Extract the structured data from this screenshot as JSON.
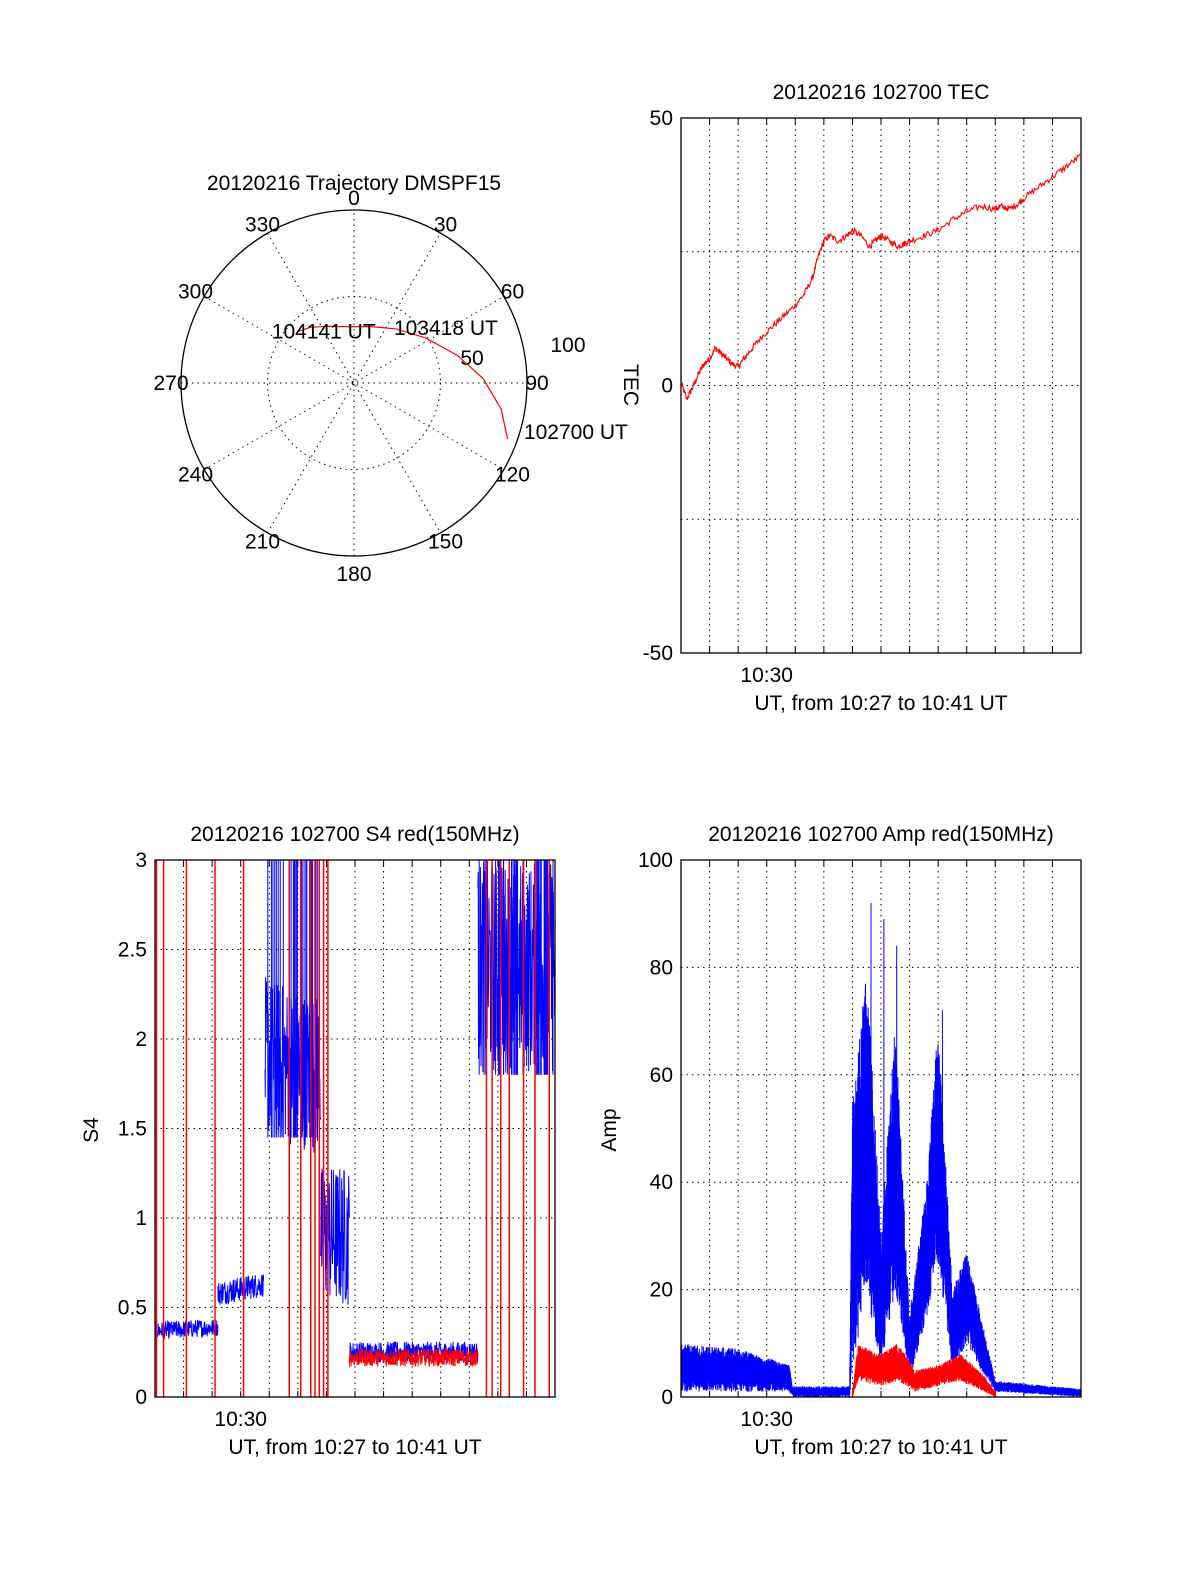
{
  "colors": {
    "red": "#ff0000",
    "blue": "#0000ff",
    "axis": "#000000"
  },
  "chart_data": [
    {
      "id": "polar",
      "type": "scatter",
      "title": "20120216 Trajectory DMSPF15",
      "azimuth_labels": [
        "0",
        "30",
        "60",
        "90",
        "120",
        "150",
        "180",
        "210",
        "240",
        "270",
        "300",
        "330"
      ],
      "radius_labels": [
        "50",
        "100"
      ],
      "trajectory": {
        "points": [
          {
            "az": 110,
            "el": 9
          },
          {
            "az": 100,
            "el": 16
          },
          {
            "az": 88,
            "el": 26
          },
          {
            "az": 75,
            "el": 37
          },
          {
            "az": 58,
            "el": 48
          },
          {
            "az": 38,
            "el": 56
          },
          {
            "az": 15,
            "el": 61
          },
          {
            "az": -5,
            "el": 62
          },
          {
            "az": -25,
            "el": 59
          },
          {
            "az": -38,
            "el": 55
          },
          {
            "az": -48,
            "el": 52
          }
        ],
        "annotations": [
          {
            "text": "104141 UT",
            "az": -30,
            "el": 60
          },
          {
            "text": "103418 UT",
            "az": 40,
            "el": 50
          },
          {
            "text": "102700 UT",
            "az": 100,
            "el": 5
          }
        ]
      }
    },
    {
      "id": "tec",
      "type": "line",
      "title": "20120216 102700 TEC",
      "xlabel": "UT, from 10:27 to 10:41 UT",
      "ylabel": "TEC",
      "xtick_labels": [
        {
          "x": 3,
          "label": "10:30"
        }
      ],
      "ytick_labels": [
        "50",
        "0",
        "-50"
      ],
      "xlim": [
        0,
        14
      ],
      "ylim": [
        -50,
        50
      ],
      "series": [
        {
          "color": "#ff0000",
          "x": [
            0,
            0.2,
            0.4,
            0.6,
            0.8,
            1.0,
            1.2,
            1.4,
            1.6,
            1.8,
            2.0,
            2.2,
            2.5,
            2.8,
            3.2,
            3.6,
            4.0,
            4.3,
            4.6,
            4.8,
            5.0,
            5.2,
            5.5,
            5.8,
            6.0,
            6.3,
            6.6,
            6.8,
            7.0,
            7.3,
            7.6,
            7.8,
            8.0,
            8.5,
            9.0,
            9.5,
            10.0,
            10.5,
            11.0,
            11.2,
            11.5,
            11.8,
            12.0,
            12.5,
            13.0,
            13.5,
            14.0
          ],
          "y": [
            0.5,
            -2.5,
            -0.5,
            2,
            4,
            5,
            7,
            6,
            5,
            4,
            3.5,
            5,
            7,
            9,
            11,
            13,
            15,
            17,
            20,
            24,
            27,
            28,
            27,
            28,
            29,
            28,
            26,
            27,
            28,
            27,
            26,
            26.5,
            27,
            28,
            29,
            31,
            32.5,
            33.5,
            33,
            33.5,
            33,
            34,
            35,
            37,
            39,
            41,
            43
          ]
        }
      ]
    },
    {
      "id": "s4",
      "type": "line",
      "title": "20120216 102700 S4 red(150MHz)",
      "xlabel": "UT, from 10:27 to 10:41 UT",
      "ylabel": "S4",
      "xtick_labels": [
        {
          "x": 3,
          "label": "10:30"
        }
      ],
      "ytick_labels": [
        "0",
        "0.5",
        "1",
        "1.5",
        "2",
        "2.5",
        "3"
      ],
      "xlim": [
        0,
        14
      ],
      "ylim": [
        0,
        3
      ],
      "series": [
        {
          "color": "#0000ff",
          "segments": [
            {
              "x0": 0,
              "x1": 2.2,
              "base": 0.37,
              "amp": 0.05,
              "trend": 0.02
            },
            {
              "x0": 2.2,
              "x1": 3.8,
              "base": 0.58,
              "amp": 0.07,
              "trend": 0.05
            },
            {
              "x0": 3.85,
              "x1": 5.8,
              "base": 1.9,
              "amp": 0.45,
              "trend": -0.1
            },
            {
              "x0": 5.8,
              "x1": 6.8,
              "base": 0.9,
              "amp": 0.4,
              "trend": 0
            },
            {
              "x0": 6.8,
              "x1": 11.3,
              "base": 0.25,
              "amp": 0.06,
              "trend": 0
            },
            {
              "x0": 11.3,
              "x1": 14,
              "base": 2.4,
              "amp": 0.6,
              "trend": 0
            }
          ]
        },
        {
          "color": "#ff0000",
          "spikes": [
            0.05,
            0.3,
            1.1,
            2.1,
            3.1,
            4.7,
            5.1,
            5.45,
            5.6,
            5.75,
            5.9,
            6.05,
            11.6,
            11.8,
            12.1,
            12.4,
            12.9,
            13.3,
            13.8
          ],
          "segments": [
            {
              "x0": 6.8,
              "x1": 11.3,
              "base": 0.22,
              "amp": 0.05,
              "trend": 0
            }
          ]
        }
      ]
    },
    {
      "id": "amp",
      "type": "line",
      "title": "20120216 102700 Amp red(150MHz)",
      "xlabel": "UT, from 10:27 to 10:41 UT",
      "ylabel": "Amp",
      "xtick_labels": [
        {
          "x": 3,
          "label": "10:30"
        }
      ],
      "ytick_labels": [
        "0",
        "20",
        "40",
        "60",
        "80",
        "100"
      ],
      "xlim": [
        0,
        14
      ],
      "ylim": [
        0,
        100
      ],
      "series": [
        {
          "color": "#0000ff",
          "envelope": [
            {
              "x": 0,
              "lo": 1,
              "hi": 10
            },
            {
              "x": 2,
              "lo": 1,
              "hi": 9
            },
            {
              "x": 3.8,
              "lo": 1,
              "hi": 6
            },
            {
              "x": 3.9,
              "lo": 0,
              "hi": 2
            },
            {
              "x": 5.9,
              "lo": 0,
              "hi": 2
            },
            {
              "x": 6.0,
              "lo": 5,
              "hi": 55
            },
            {
              "x": 6.5,
              "lo": 20,
              "hi": 80
            },
            {
              "x": 7.0,
              "lo": 5,
              "hi": 30
            },
            {
              "x": 7.5,
              "lo": 20,
              "hi": 70
            },
            {
              "x": 8.0,
              "lo": 3,
              "hi": 15
            },
            {
              "x": 8.6,
              "lo": 15,
              "hi": 40
            },
            {
              "x": 9.0,
              "lo": 25,
              "hi": 70
            },
            {
              "x": 9.5,
              "lo": 5,
              "hi": 20
            },
            {
              "x": 10.0,
              "lo": 10,
              "hi": 27
            },
            {
              "x": 10.5,
              "lo": 5,
              "hi": 15
            },
            {
              "x": 11.0,
              "lo": 1,
              "hi": 3
            },
            {
              "x": 14.0,
              "lo": 0,
              "hi": 1.5
            }
          ]
        },
        {
          "color": "#ff0000",
          "envelope": [
            {
              "x": 6.0,
              "lo": 0,
              "hi": 1
            },
            {
              "x": 6.2,
              "lo": 3,
              "hi": 10
            },
            {
              "x": 7.0,
              "lo": 2,
              "hi": 8
            },
            {
              "x": 7.6,
              "lo": 3,
              "hi": 10
            },
            {
              "x": 8.2,
              "lo": 1,
              "hi": 5
            },
            {
              "x": 9.0,
              "lo": 2,
              "hi": 6
            },
            {
              "x": 9.8,
              "lo": 3,
              "hi": 8
            },
            {
              "x": 10.6,
              "lo": 1,
              "hi": 4
            },
            {
              "x": 11.0,
              "lo": 0,
              "hi": 1
            }
          ]
        }
      ]
    }
  ]
}
